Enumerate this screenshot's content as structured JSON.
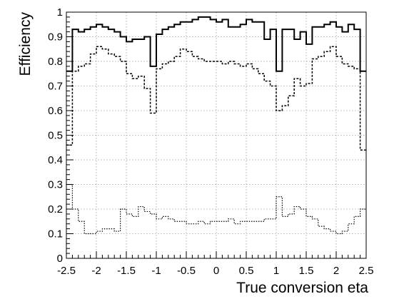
{
  "chart_data": {
    "type": "line",
    "style": "step histogram",
    "xlabel": "True conversion eta",
    "ylabel": "Efficiency",
    "xlim": [
      -2.5,
      2.5
    ],
    "ylim": [
      0,
      1
    ],
    "grid": true,
    "x_ticks": [
      -2.5,
      -2,
      -1.5,
      -1,
      -0.5,
      0,
      0.5,
      1,
      1.5,
      2,
      2.5
    ],
    "y_ticks": [
      0,
      0.1,
      0.2,
      0.3,
      0.4,
      0.5,
      0.6,
      0.7,
      0.8,
      0.9,
      1
    ],
    "x_tick_labels": [
      "-2.5",
      "-2",
      "-1.5",
      "-1",
      "-0.5",
      "0",
      "0.5",
      "1",
      "1.5",
      "2",
      "2.5"
    ],
    "y_tick_labels": [
      "0",
      "0.1",
      "0.2",
      "0.3",
      "0.4",
      "0.5",
      "0.6",
      "0.7",
      "0.8",
      "0.9",
      "1"
    ],
    "bin_edges": [
      -2.5,
      -2.4,
      -2.3,
      -2.2,
      -2.1,
      -2.0,
      -1.9,
      -1.8,
      -1.7,
      -1.6,
      -1.5,
      -1.4,
      -1.3,
      -1.2,
      -1.1,
      -1.0,
      -0.9,
      -0.8,
      -0.7,
      -0.6,
      -0.5,
      -0.4,
      -0.3,
      -0.2,
      -0.1,
      0.0,
      0.1,
      0.2,
      0.3,
      0.4,
      0.5,
      0.6,
      0.7,
      0.8,
      0.9,
      1.0,
      1.1,
      1.2,
      1.3,
      1.4,
      1.5,
      1.6,
      1.7,
      1.8,
      1.9,
      2.0,
      2.1,
      2.2,
      2.3,
      2.4,
      2.5
    ],
    "series": [
      {
        "line_style": "solid",
        "line_width": 2,
        "values": [
          0.76,
          0.93,
          0.92,
          0.93,
          0.94,
          0.95,
          0.94,
          0.93,
          0.92,
          0.9,
          0.88,
          0.89,
          0.89,
          0.9,
          0.78,
          0.91,
          0.93,
          0.94,
          0.95,
          0.96,
          0.96,
          0.97,
          0.98,
          0.98,
          0.97,
          0.96,
          0.97,
          0.94,
          0.94,
          0.95,
          0.97,
          0.96,
          0.96,
          0.89,
          0.93,
          0.76,
          0.93,
          0.93,
          0.89,
          0.92,
          0.87,
          0.94,
          0.94,
          0.95,
          0.96,
          0.94,
          0.92,
          0.95,
          0.93,
          0.76
        ]
      },
      {
        "line_style": "dashed",
        "line_width": 1.5,
        "values": [
          0.46,
          0.76,
          0.78,
          0.79,
          0.83,
          0.86,
          0.85,
          0.83,
          0.82,
          0.8,
          0.75,
          0.73,
          0.74,
          0.69,
          0.59,
          0.77,
          0.79,
          0.8,
          0.82,
          0.85,
          0.84,
          0.82,
          0.81,
          0.8,
          0.8,
          0.8,
          0.79,
          0.8,
          0.79,
          0.78,
          0.79,
          0.77,
          0.75,
          0.72,
          0.7,
          0.6,
          0.62,
          0.66,
          0.73,
          0.7,
          0.71,
          0.81,
          0.82,
          0.84,
          0.86,
          0.82,
          0.79,
          0.78,
          0.77,
          0.44
        ]
      },
      {
        "line_style": "dotted",
        "line_width": 1.2,
        "values": [
          0.3,
          0.2,
          0.15,
          0.1,
          0.1,
          0.11,
          0.12,
          0.12,
          0.11,
          0.2,
          0.18,
          0.17,
          0.21,
          0.19,
          0.18,
          0.16,
          0.17,
          0.16,
          0.15,
          0.15,
          0.14,
          0.14,
          0.15,
          0.14,
          0.15,
          0.15,
          0.15,
          0.16,
          0.14,
          0.15,
          0.15,
          0.15,
          0.15,
          0.16,
          0.16,
          0.25,
          0.17,
          0.18,
          0.21,
          0.2,
          0.17,
          0.16,
          0.13,
          0.12,
          0.11,
          0.1,
          0.11,
          0.14,
          0.17,
          0.2
        ]
      }
    ]
  }
}
